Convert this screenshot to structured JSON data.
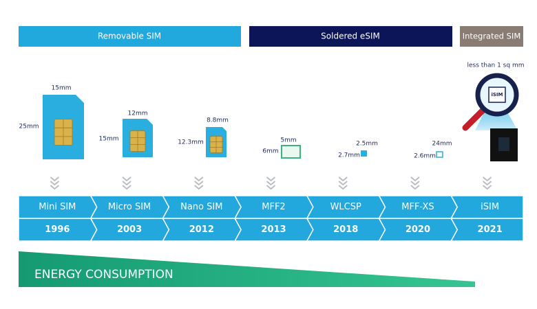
{
  "groups": [
    "Removable SIM",
    "Soldered eSIM",
    "Integrated SIM"
  ],
  "isim_note": "less than 1 sq mm",
  "isim_chip_label": "iSIM",
  "items": [
    {
      "name": "Mini SIM",
      "year": "1996",
      "width": "15mm",
      "height": "25mm"
    },
    {
      "name": "Micro SIM",
      "year": "2003",
      "width": "12mm",
      "height": "15mm"
    },
    {
      "name": "Nano SIM",
      "year": "2012",
      "width": "8.8mm",
      "height": "12.3mm"
    },
    {
      "name": "MFF2",
      "year": "2013",
      "width": "5mm",
      "height": "6mm"
    },
    {
      "name": "WLCSP",
      "year": "2018",
      "width": "2.5mm",
      "height": "2.7mm"
    },
    {
      "name": "MFF-XS",
      "year": "2020",
      "width": "24mm",
      "height": "2.6mm"
    },
    {
      "name": "iSIM",
      "year": "2021"
    }
  ],
  "energy_label": "ENERGY CONSUMPTION"
}
